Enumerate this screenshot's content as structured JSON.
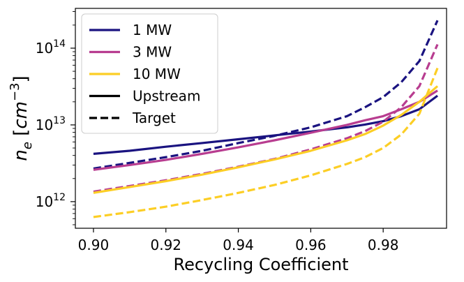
{
  "chart_data": {
    "type": "line",
    "xlabel": "Recycling Coefficient",
    "ylabel": "n_e [cm^-3]",
    "xlim": [
      0.895,
      0.9975
    ],
    "ylim": [
      450000000000.0,
      330000000000000.0
    ],
    "yscale": "log",
    "xticks": [
      0.9,
      0.92,
      0.94,
      0.96,
      0.98
    ],
    "xtick_labels": [
      "0.90",
      "0.92",
      "0.94",
      "0.96",
      "0.98"
    ],
    "yticks": [
      1000000000000.0,
      10000000000000.0,
      100000000000000.0
    ],
    "ytick_labels": [
      {
        "base": "10",
        "exp": "12"
      },
      {
        "base": "10",
        "exp": "13"
      },
      {
        "base": "10",
        "exp": "14"
      }
    ],
    "legend_position": "top-left",
    "x": [
      0.9,
      0.91,
      0.92,
      0.93,
      0.94,
      0.95,
      0.96,
      0.97,
      0.975,
      0.98,
      0.985,
      0.99,
      0.995
    ],
    "series": [
      {
        "name": "1 MW",
        "style": "Upstream",
        "color": "#1a1380",
        "values": [
          4200000000000.0,
          4600000000000.0,
          5200000000000.0,
          5800000000000.0,
          6500000000000.0,
          7300000000000.0,
          8200000000000.0,
          9300000000000.0,
          10100000000000.0,
          11200000000000.0,
          13000000000000.0,
          16000000000000.0,
          24000000000000.0
        ]
      },
      {
        "name": "1 MW",
        "style": "Target",
        "color": "#1a1380",
        "values": [
          2700000000000.0,
          3200000000000.0,
          3800000000000.0,
          4600000000000.0,
          5800000000000.0,
          7200000000000.0,
          9300000000000.0,
          13000000000000.0,
          17000000000000.0,
          23000000000000.0,
          36000000000000.0,
          68000000000000.0,
          230000000000000.0
        ]
      },
      {
        "name": "3 MW",
        "style": "Upstream",
        "color": "#b83d90",
        "values": [
          2600000000000.0,
          3000000000000.0,
          3500000000000.0,
          4200000000000.0,
          5100000000000.0,
          6300000000000.0,
          7900000000000.0,
          10000000000000.0,
          11500000000000.0,
          13000000000000.0,
          16000000000000.0,
          20000000000000.0,
          28000000000000.0
        ]
      },
      {
        "name": "3 MW",
        "style": "Target",
        "color": "#b83d90",
        "values": [
          1350000000000.0,
          1600000000000.0,
          1900000000000.0,
          2300000000000.0,
          2850000000000.0,
          3600000000000.0,
          4800000000000.0,
          6700000000000.0,
          8300000000000.0,
          11000000000000.0,
          17000000000000.0,
          32000000000000.0,
          112000000000000.0
        ]
      },
      {
        "name": "10 MW",
        "style": "Upstream",
        "color": "#fcce25",
        "values": [
          1300000000000.0,
          1550000000000.0,
          1850000000000.0,
          2250000000000.0,
          2800000000000.0,
          3550000000000.0,
          4600000000000.0,
          6300000000000.0,
          7600000000000.0,
          9800000000000.0,
          13500000000000.0,
          20000000000000.0,
          32000000000000.0
        ]
      },
      {
        "name": "10 MW",
        "style": "Target",
        "color": "#fcce25",
        "values": [
          630000000000.0,
          730000000000.0,
          860000000000.0,
          1050000000000.0,
          1300000000000.0,
          1650000000000.0,
          2200000000000.0,
          3100000000000.0,
          3800000000000.0,
          5000000000000.0,
          7500000000000.0,
          14000000000000.0,
          55000000000000.0
        ]
      }
    ],
    "legend": [
      {
        "label": "1 MW",
        "color": "#1a1380",
        "dash": "solid"
      },
      {
        "label": "3 MW",
        "color": "#b83d90",
        "dash": "solid"
      },
      {
        "label": "10 MW",
        "color": "#fcce25",
        "dash": "solid"
      },
      {
        "label": "Upstream",
        "color": "#000000",
        "dash": "solid"
      },
      {
        "label": "Target",
        "color": "#000000",
        "dash": "dashed"
      }
    ]
  }
}
